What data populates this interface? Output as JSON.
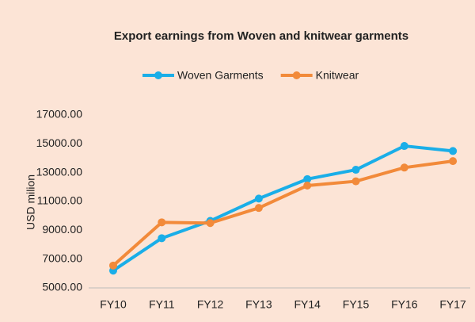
{
  "chart_data": {
    "type": "line",
    "title": "Export earnings from Woven and knitwear garments",
    "y_label": "USD milion",
    "categories": [
      "FY10",
      "FY11",
      "FY12",
      "FY13",
      "FY14",
      "FY15",
      "FY16",
      "FY17"
    ],
    "series": [
      {
        "name": "Woven Garments",
        "color": "#1aaee8",
        "values": [
          6200,
          8450,
          9650,
          11200,
          12550,
          13200,
          14850,
          14500
        ]
      },
      {
        "name": "Knitwear",
        "color": "#f28a3a",
        "values": [
          6550,
          9550,
          9500,
          10550,
          12100,
          12400,
          13350,
          13800
        ]
      }
    ],
    "ylim": [
      5000,
      17000
    ],
    "yticks": [
      {
        "value": 5000,
        "label": "5000.00"
      },
      {
        "value": 7000,
        "label": "7000.00"
      },
      {
        "value": 9000,
        "label": "9000.00"
      },
      {
        "value": 11000,
        "label": "11000.00"
      },
      {
        "value": 13000,
        "label": "13000.00"
      },
      {
        "value": 15000,
        "label": "15000.00"
      },
      {
        "value": 17000,
        "label": "17000.00"
      }
    ],
    "legend": "top",
    "background": "#fce4d6"
  }
}
